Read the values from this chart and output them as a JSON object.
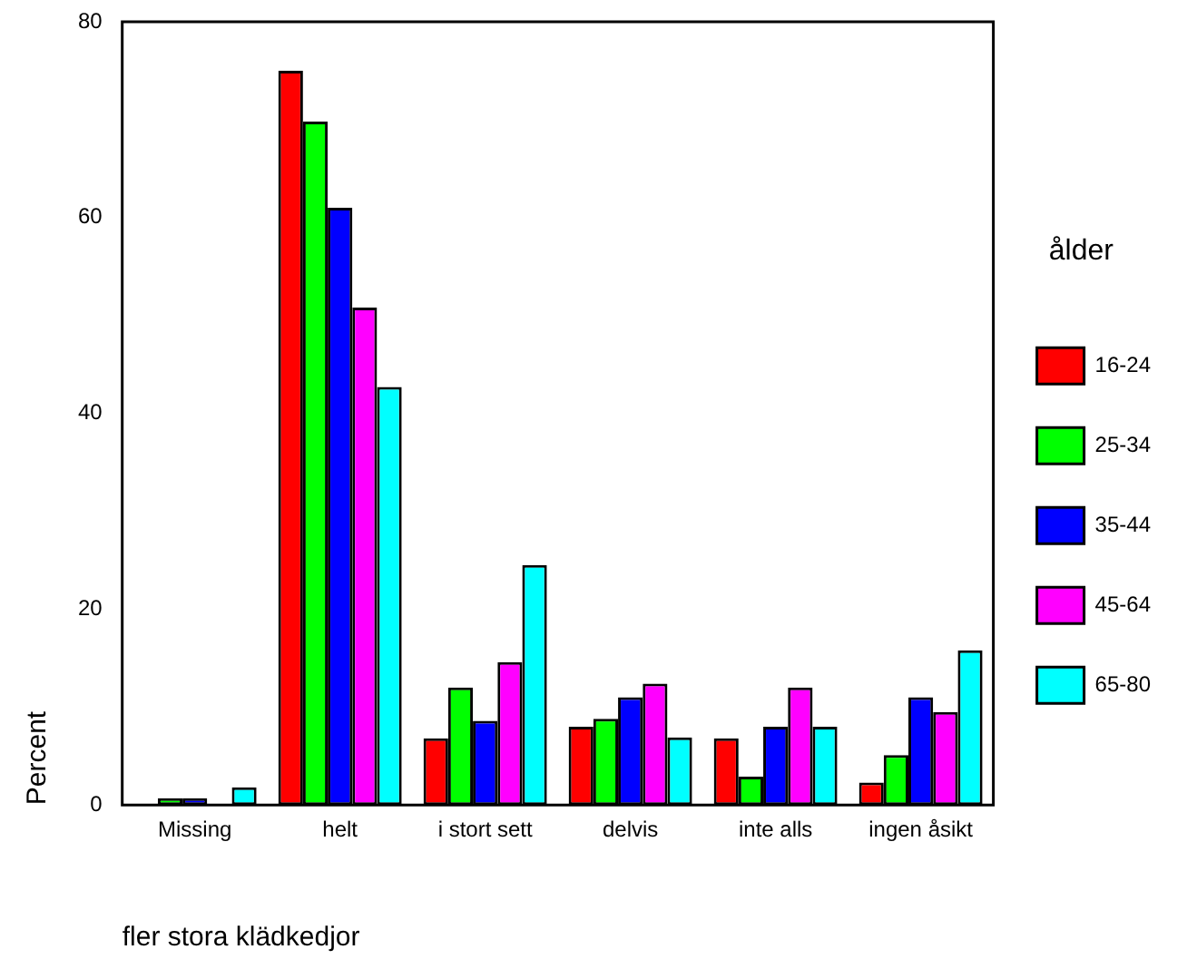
{
  "chart_data": {
    "type": "bar",
    "xlabel": "fler stora klädkedjor",
    "ylabel": "Percent",
    "legend_title": "ålder",
    "legend": "right",
    "grid": false,
    "categories": [
      "Missing",
      "helt",
      "i stort sett",
      "delvis",
      "inte alls",
      "ingen åsikt"
    ],
    "ylim": [
      0,
      80
    ],
    "yticks": [
      0,
      20,
      40,
      60,
      80
    ],
    "series": [
      {
        "name": "16-24",
        "color": "#ff0000",
        "values": [
          0,
          75.0,
          6.8,
          8.0,
          6.8,
          2.3
        ]
      },
      {
        "name": "25-34",
        "color": "#00ff00",
        "values": [
          0.7,
          69.8,
          12.0,
          8.8,
          2.9,
          5.1
        ]
      },
      {
        "name": "35-44",
        "color": "#0000ff",
        "values": [
          0.7,
          61.0,
          8.6,
          11.0,
          8.0,
          11.0
        ]
      },
      {
        "name": "45-64",
        "color": "#ff00ff",
        "values": [
          0,
          50.8,
          14.6,
          12.4,
          12.0,
          9.5
        ]
      },
      {
        "name": "65-80",
        "color": "#00ffff",
        "values": [
          1.8,
          42.7,
          24.5,
          6.9,
          8.0,
          15.8
        ]
      }
    ]
  }
}
